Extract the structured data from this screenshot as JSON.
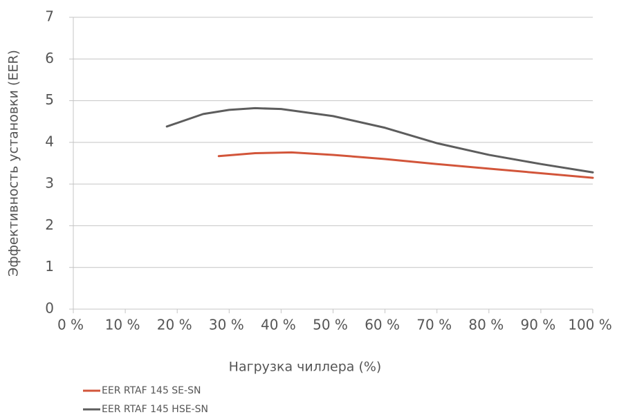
{
  "chart_data": {
    "type": "line",
    "x_label": "Нагрузка чиллера (%)",
    "y_label": "Эффективность установки (EER)",
    "xlim": [
      0,
      100
    ],
    "ylim": [
      0,
      7
    ],
    "xticks": [
      {
        "value": 0,
        "label": "0 %"
      },
      {
        "value": 10,
        "label": "10 %"
      },
      {
        "value": 20,
        "label": "20 %"
      },
      {
        "value": 30,
        "label": "30 %"
      },
      {
        "value": 40,
        "label": "40 %"
      },
      {
        "value": 50,
        "label": "50 %"
      },
      {
        "value": 60,
        "label": "60 %"
      },
      {
        "value": 70,
        "label": "70 %"
      },
      {
        "value": 80,
        "label": "80 %"
      },
      {
        "value": 90,
        "label": "90 %"
      },
      {
        "value": 100,
        "label": "100 %"
      }
    ],
    "yticks": [
      0,
      1,
      2,
      3,
      4,
      5,
      6,
      7
    ],
    "grid": true,
    "legend": "bottom-left",
    "series": [
      {
        "name": "EER RTAF 145 SE-SN",
        "color": "#d2553a",
        "x": [
          28,
          35,
          42,
          50,
          60,
          70,
          80,
          90,
          100
        ],
        "values": [
          3.67,
          3.74,
          3.76,
          3.7,
          3.6,
          3.48,
          3.37,
          3.26,
          3.15
        ]
      },
      {
        "name": "EER RTAF 145 HSE-SN",
        "color": "#5d5d5d",
        "x": [
          18,
          25,
          30,
          35,
          40,
          50,
          60,
          70,
          80,
          90,
          100
        ],
        "values": [
          4.38,
          4.68,
          4.78,
          4.82,
          4.8,
          4.63,
          4.35,
          3.98,
          3.7,
          3.48,
          3.28
        ]
      }
    ]
  }
}
